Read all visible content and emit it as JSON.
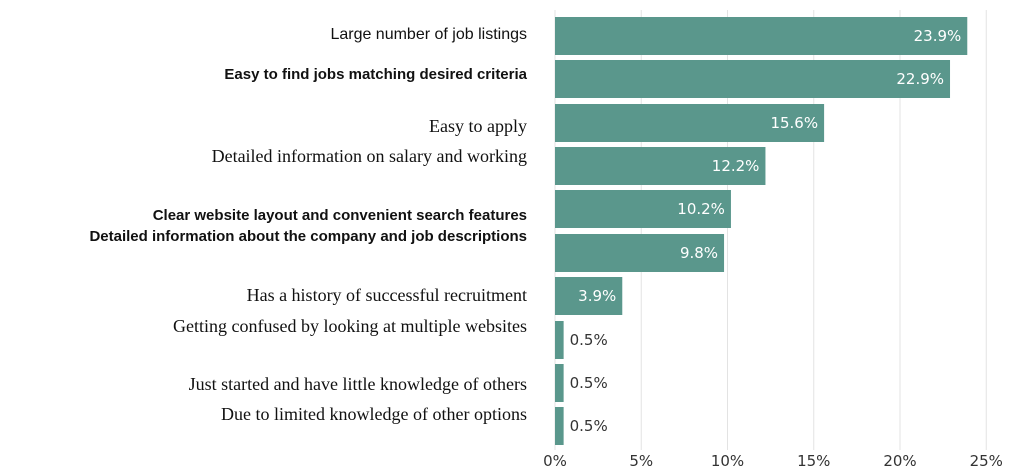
{
  "chart_data": {
    "type": "bar",
    "orientation": "horizontal",
    "title": "",
    "xlabel": "",
    "ylabel": "",
    "xlim": [
      0,
      25
    ],
    "x_ticks": [
      "0%",
      "5%",
      "10%",
      "15%",
      "20%",
      "25%"
    ],
    "grid": "vertical",
    "bar_color": "#5a978c",
    "categories": [
      "Large number of job listings",
      "Easy to find jobs matching desired criteria",
      "Easy to apply",
      "Detailed information on salary and working",
      "Clear website layout and convenient search features",
      "Detailed information about the company and job descriptions",
      "Has a history of successful recruitment",
      "Getting confused by looking at multiple websites",
      "Just started and have little knowledge of others",
      "Due to limited knowledge of other options"
    ],
    "values": [
      23.9,
      22.9,
      15.6,
      12.2,
      10.2,
      9.8,
      3.9,
      0.5,
      0.5,
      0.5
    ],
    "value_labels": [
      "23.9%",
      "22.9%",
      "15.6%",
      "12.2%",
      "10.2%",
      "9.8%",
      "3.9%",
      "0.5%",
      "0.5%",
      "0.5%"
    ]
  }
}
